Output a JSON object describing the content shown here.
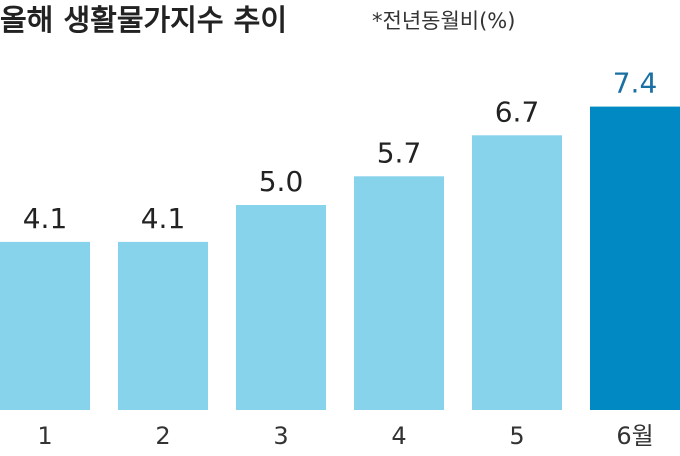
{
  "chart_data": {
    "type": "bar",
    "title": "올해 생활물가지수 추이",
    "subtitle": "*전년동월비(%)",
    "categories": [
      "1",
      "2",
      "3",
      "4",
      "5",
      "6월"
    ],
    "values": [
      4.1,
      4.1,
      5.0,
      5.7,
      6.7,
      7.4
    ],
    "value_labels": [
      "4.1",
      "4.1",
      "5.0",
      "5.7",
      "6.7",
      "7.4"
    ],
    "colors": [
      "#87d3ec",
      "#87d3ec",
      "#87d3ec",
      "#87d3ec",
      "#87d3ec",
      "#0089c2"
    ],
    "label_colors": [
      "#222222",
      "#222222",
      "#222222",
      "#222222",
      "#222222",
      "#1a6fa3"
    ],
    "ylim": [
      0,
      10
    ]
  }
}
